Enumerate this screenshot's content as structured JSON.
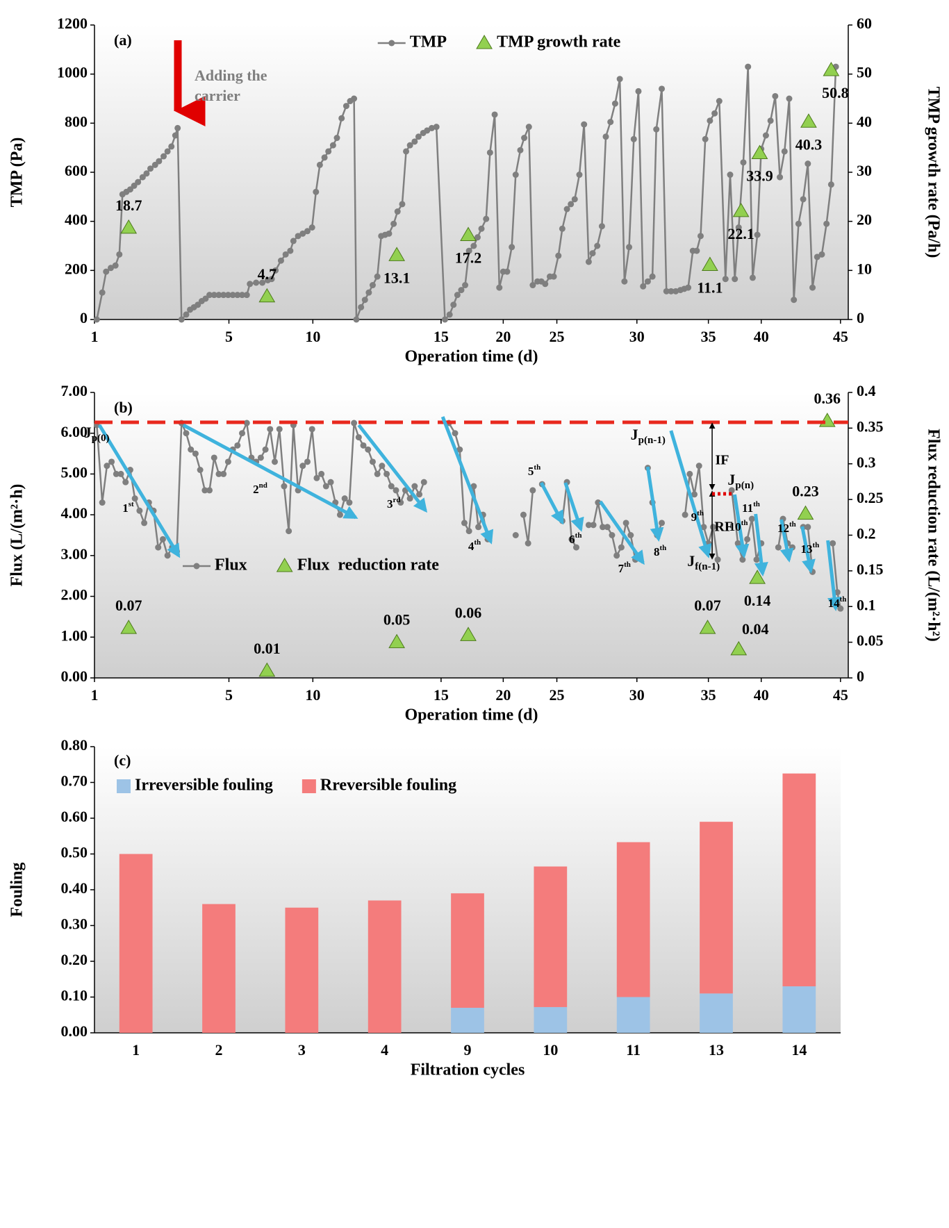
{
  "chart_data": [
    {
      "type": "line",
      "title": "(a)",
      "xlabel": "Operation time (d)",
      "ylabel": "TMP (Pa)",
      "y2label": "TMP growth rate (Pa/h)",
      "xlim": [
        0,
        97
      ],
      "xticks": [
        {
          "value": 0,
          "label": "1"
        },
        {
          "value": 17.3,
          "label": "5"
        },
        {
          "value": 28.1,
          "label": "10"
        },
        {
          "value": 44.6,
          "label": "15"
        },
        {
          "value": 52.6,
          "label": "20"
        },
        {
          "value": 59.5,
          "label": "25"
        },
        {
          "value": 69.8,
          "label": "30"
        },
        {
          "value": 79.0,
          "label": "35"
        },
        {
          "value": 85.8,
          "label": "40"
        },
        {
          "value": 96.0,
          "label": "45"
        }
      ],
      "ylim": [
        0,
        1200
      ],
      "yticks": [
        0,
        200,
        400,
        600,
        800,
        1000,
        1200
      ],
      "y2lim": [
        0,
        60
      ],
      "y2ticks": [
        0,
        10,
        20,
        30,
        40,
        50,
        60
      ],
      "legend": "upper center",
      "annotation": [
        "Adding the",
        "carrier"
      ],
      "series": [
        {
          "name": "TMP",
          "color": "#7f7f7f",
          "style": "line-markers",
          "marker": "circle",
          "x": [
            0.3,
            1.0,
            1.5,
            2.1,
            2.7,
            3.2,
            3.6,
            4.1,
            4.6,
            5.1,
            5.6,
            6.2,
            6.7,
            7.2,
            7.8,
            8.3,
            8.9,
            9.4,
            9.9,
            10.4,
            10.7,
            11.2,
            11.8,
            12.3,
            12.8,
            13.3,
            13.8,
            14.3,
            14.8,
            15.4,
            16.0,
            16.6,
            17.2,
            17.8,
            18.4,
            19.0,
            19.6,
            20.0,
            20.8,
            21.6,
            22.3,
            22.8,
            23.3,
            24.0,
            24.6,
            25.2,
            25.6,
            26.2,
            26.8,
            27.4,
            28.0,
            28.5,
            29.0,
            29.6,
            30.1,
            30.7,
            31.2,
            31.8,
            32.4,
            32.9,
            33.4,
            33.7,
            34.3,
            34.8,
            35.3,
            35.8,
            36.4,
            36.9,
            37.4,
            37.9,
            38.5,
            39.0,
            39.6,
            40.1,
            40.6,
            41.2,
            41.7,
            42.3,
            42.8,
            43.4,
            44.0,
            45.1,
            45.7,
            46.2,
            46.7,
            47.2,
            47.7,
            48.2,
            48.8,
            49.3,
            49.8,
            50.4,
            50.9,
            51.5,
            52.1,
            52.6,
            53.1,
            53.7,
            54.2,
            54.8,
            55.3,
            55.9,
            56.4,
            57.0,
            57.5,
            58.0,
            58.6,
            59.1,
            59.7,
            60.2,
            60.8,
            61.3,
            61.8,
            62.4,
            63.0,
            63.6,
            64.1,
            64.7,
            65.3,
            65.8,
            66.4,
            67.0,
            67.6,
            68.2,
            68.8,
            69.4,
            70.0,
            70.6,
            71.2,
            71.8,
            72.3,
            73.0,
            73.6,
            74.2,
            74.8,
            75.4,
            75.9,
            76.4,
            77.0,
            77.5,
            78.0,
            78.6,
            79.2,
            79.8,
            80.4,
            81.2,
            81.8,
            82.4,
            82.9,
            83.5,
            84.1,
            84.7,
            85.3,
            85.8,
            86.4,
            87.0,
            87.6,
            88.2,
            88.8,
            89.4,
            90.0,
            90.6,
            91.2,
            91.8,
            92.4,
            93.0,
            93.6,
            94.2,
            94.8,
            95.4
          ],
          "values": [
            0,
            110,
            195,
            210,
            220,
            265,
            510,
            520,
            530,
            545,
            560,
            580,
            595,
            615,
            630,
            645,
            665,
            685,
            705,
            750,
            780,
            0,
            20,
            40,
            50,
            60,
            75,
            85,
            100,
            100,
            100,
            100,
            100,
            100,
            100,
            100,
            100,
            145,
            150,
            150,
            160,
            165,
            200,
            240,
            265,
            280,
            320,
            340,
            350,
            360,
            375,
            520,
            630,
            660,
            685,
            710,
            740,
            820,
            870,
            890,
            900,
            0,
            50,
            80,
            110,
            140,
            175,
            340,
            345,
            350,
            390,
            440,
            470,
            685,
            710,
            725,
            745,
            760,
            770,
            780,
            785,
            0,
            20,
            60,
            100,
            120,
            140,
            280,
            300,
            335,
            370,
            410,
            680,
            835,
            130,
            195,
            195,
            295,
            590,
            690,
            740,
            785,
            140,
            155,
            155,
            145,
            175,
            175,
            260,
            370,
            450,
            470,
            490,
            590,
            795,
            235,
            270,
            300,
            380,
            745,
            805,
            880,
            980,
            155,
            295,
            735,
            930,
            135,
            155,
            175,
            775,
            940,
            115,
            115,
            115,
            120,
            125,
            130,
            280,
            280,
            340,
            735,
            810,
            840,
            890,
            165,
            590,
            165,
            375,
            640,
            1030,
            170,
            345,
            695,
            750,
            810,
            910,
            580,
            685,
            900,
            80,
            390,
            490,
            635,
            130,
            255,
            265,
            390,
            550,
            1030
          ]
        },
        {
          "name": "TMP growth rate",
          "color": "#92d050",
          "style": "markers",
          "marker": "triangle",
          "axis": "y2",
          "x": [
            4.4,
            22.2,
            38.9,
            48.1,
            79.2,
            83.2,
            85.6,
            91.9,
            94.8
          ],
          "values": [
            18.7,
            4.7,
            13.1,
            17.2,
            11.1,
            22.1,
            33.9,
            40.3,
            50.8
          ]
        }
      ]
    },
    {
      "type": "line",
      "title": "(b)",
      "xlabel": "Operation time (d)",
      "ylabel": "Flux (L/(m²·h)",
      "y2label": "Flux reduction rate (L/(m²·h²)",
      "xlim": [
        0,
        97
      ],
      "xticks": [
        {
          "value": 0,
          "label": "1"
        },
        {
          "value": 17.3,
          "label": "5"
        },
        {
          "value": 28.1,
          "label": "10"
        },
        {
          "value": 44.6,
          "label": "15"
        },
        {
          "value": 52.6,
          "label": "20"
        },
        {
          "value": 59.5,
          "label": "25"
        },
        {
          "value": 69.8,
          "label": "30"
        },
        {
          "value": 79.0,
          "label": "35"
        },
        {
          "value": 85.8,
          "label": "40"
        },
        {
          "value": 96.0,
          "label": "45"
        }
      ],
      "ylim": [
        0,
        7
      ],
      "yticks": [
        {
          "value": 0,
          "label": "0.00"
        },
        {
          "value": 1,
          "label": "1.00"
        },
        {
          "value": 2,
          "label": "2.00"
        },
        {
          "value": 3,
          "label": "3.00"
        },
        {
          "value": 4,
          "label": "4.00"
        },
        {
          "value": 5,
          "label": "5.00"
        },
        {
          "value": 6,
          "label": "6.00"
        },
        {
          "value": 7,
          "label": "7.00"
        }
      ],
      "y2lim": [
        0,
        0.4
      ],
      "y2ticks": [
        0,
        0.05,
        0.1,
        0.15,
        0.2,
        0.25,
        0.3,
        0.35,
        0.4
      ],
      "legend": "lower left",
      "cycle_labels": [
        {
          "text": "1",
          "sup": "st"
        },
        {
          "text": "2",
          "sup": "nd"
        },
        {
          "text": "3",
          "sup": "rd"
        },
        {
          "text": "4",
          "sup": "th"
        },
        {
          "text": "5",
          "sup": "th"
        },
        {
          "text": "6",
          "sup": "th"
        },
        {
          "text": "7",
          "sup": "th"
        },
        {
          "text": "8",
          "sup": "th"
        },
        {
          "text": "9",
          "sup": "th"
        },
        {
          "text": "10",
          "sup": "th"
        },
        {
          "text": "11",
          "sup": "th"
        },
        {
          "text": "12",
          "sup": "th"
        },
        {
          "text": "13",
          "sup": "th"
        },
        {
          "text": "14",
          "sup": "th"
        }
      ],
      "flux_labels": [
        {
          "text": "J",
          "sub": "p(0)"
        },
        {
          "text": "J",
          "sub": "p(n-1)"
        },
        {
          "text": "J",
          "sub": "p(n)"
        },
        {
          "text": "J",
          "sub": "f(n-1)"
        }
      ],
      "notes": [
        "IF",
        "RF"
      ],
      "series": [
        {
          "name": "Flux",
          "color": "#7f7f7f",
          "style": "line-markers",
          "marker": "circle",
          "x": [
            0.3,
            1.0,
            1.6,
            2.2,
            2.8,
            3.4,
            4.0,
            4.6,
            5.2,
            5.8,
            6.4,
            7.0,
            7.6,
            8.2,
            8.8,
            9.4,
            10.0,
            10.6,
            11.2,
            11.8,
            12.4,
            13.0,
            13.6,
            14.2,
            14.8,
            15.4,
            16.0,
            16.6,
            17.2,
            17.8,
            18.4,
            19.0,
            19.6,
            20.2,
            20.8,
            21.4,
            22.0,
            22.6,
            23.2,
            23.8,
            24.4,
            25.0,
            25.6,
            26.2,
            26.8,
            27.4,
            28.0,
            28.6,
            29.2,
            29.8,
            30.4,
            31.0,
            31.6,
            32.2,
            32.8,
            33.4,
            34.0,
            34.6,
            35.2,
            35.8,
            36.4,
            37.0,
            37.6,
            38.2,
            38.8,
            39.4,
            40.0,
            40.6,
            41.2,
            41.8,
            42.4,
            44.0,
            45.6,
            46.4,
            47.0,
            47.6,
            48.2,
            48.8,
            49.4,
            50.0,
            50.6,
            52.4,
            54.2,
            54.7,
            55.2,
            55.8,
            56.4,
            57.0,
            57.6,
            60.2,
            60.8,
            61.4,
            62.0,
            62.8,
            63.6,
            64.2,
            64.8,
            65.4,
            66.0,
            66.6,
            67.2,
            67.8,
            68.4,
            69.0,
            69.6,
            70.4,
            71.2,
            71.8,
            72.4,
            73.0,
            74.5,
            76.0,
            76.6,
            77.2,
            77.8,
            78.4,
            79.0,
            79.6,
            80.2,
            81.1,
            82.0,
            82.8,
            83.4,
            84.0,
            84.6,
            85.2,
            85.8,
            86.9,
            88.0,
            88.6,
            89.2,
            89.8,
            90.5,
            91.2,
            91.8,
            92.4,
            93.7,
            95.0,
            95.6,
            96.0
          ],
          "values": [
            6.2,
            4.3,
            5.2,
            5.3,
            5.0,
            5.0,
            4.8,
            5.1,
            4.4,
            4.1,
            3.8,
            4.3,
            4.1,
            3.2,
            3.4,
            3.0,
            3.2,
            3.1,
            6.25,
            6.0,
            5.6,
            5.5,
            5.1,
            4.6,
            4.6,
            5.4,
            5.0,
            5.0,
            5.3,
            5.6,
            5.7,
            6.0,
            6.25,
            5.4,
            5.3,
            5.4,
            5.6,
            6.1,
            5.3,
            6.1,
            4.7,
            3.6,
            6.2,
            4.6,
            5.2,
            5.3,
            6.1,
            4.9,
            5.0,
            4.7,
            4.8,
            4.3,
            4.0,
            4.4,
            4.3,
            6.25,
            5.9,
            5.7,
            5.6,
            5.3,
            5.0,
            5.2,
            5.0,
            4.7,
            4.6,
            4.3,
            4.6,
            4.4,
            4.7,
            4.5,
            4.8,
            null,
            6.25,
            6.0,
            5.6,
            3.8,
            3.6,
            4.7,
            3.7,
            4.0,
            3.4,
            null,
            3.5,
            null,
            4.0,
            3.3,
            4.6,
            null,
            4.75,
            3.85,
            4.8,
            3.4,
            3.2,
            null,
            3.75,
            3.75,
            4.3,
            3.7,
            3.7,
            3.5,
            3.0,
            3.2,
            3.8,
            3.5,
            2.9,
            null,
            5.15,
            4.3,
            3.5,
            3.8,
            null,
            4.0,
            5.0,
            4.5,
            5.2,
            3.7,
            3.3,
            3.7,
            2.9,
            null,
            4.6,
            3.3,
            2.9,
            3.4,
            3.9,
            2.9,
            3.3,
            null,
            3.2,
            3.9,
            3.3,
            3.2,
            null,
            3.7,
            3.7,
            2.6,
            null,
            3.3,
            2.1,
            1.7
          ]
        },
        {
          "name": "Flux  reduction rate",
          "color": "#92d050",
          "style": "markers",
          "marker": "triangle",
          "axis": "y2",
          "x": [
            4.4,
            22.2,
            38.9,
            48.1,
            78.9,
            82.9,
            85.3,
            91.5,
            94.3
          ],
          "values": [
            0.07,
            0.01,
            0.05,
            0.06,
            0.07,
            0.04,
            0.14,
            0.23,
            0.36
          ]
        }
      ]
    },
    {
      "type": "bar",
      "stacked": true,
      "title": "(c)",
      "xlabel": "Filtration cycles",
      "ylabel": "Fouling",
      "categories": [
        "1",
        "2",
        "3",
        "4",
        "9",
        "10",
        "11",
        "13",
        "14"
      ],
      "ylim": [
        0,
        0.8
      ],
      "yticks": [
        {
          "value": 0,
          "label": "0.00"
        },
        {
          "value": 0.1,
          "label": "0.10"
        },
        {
          "value": 0.2,
          "label": "0.20"
        },
        {
          "value": 0.3,
          "label": "0.30"
        },
        {
          "value": 0.4,
          "label": "0.40"
        },
        {
          "value": 0.5,
          "label": "0.50"
        },
        {
          "value": 0.6,
          "label": "0.60"
        },
        {
          "value": 0.7,
          "label": "0.70"
        },
        {
          "value": 0.8,
          "label": "0.80"
        }
      ],
      "legend": "upper left",
      "series": [
        {
          "name": "Irreversible fouling",
          "color": "#9dc3e6",
          "values": [
            0,
            0,
            0,
            0,
            0.07,
            0.072,
            0.1,
            0.11,
            0.13
          ]
        },
        {
          "name": "Rreversible fouling",
          "color": "#f47c7c",
          "values": [
            0.5,
            0.36,
            0.35,
            0.37,
            0.32,
            0.393,
            0.433,
            0.48,
            0.595
          ]
        }
      ]
    }
  ]
}
